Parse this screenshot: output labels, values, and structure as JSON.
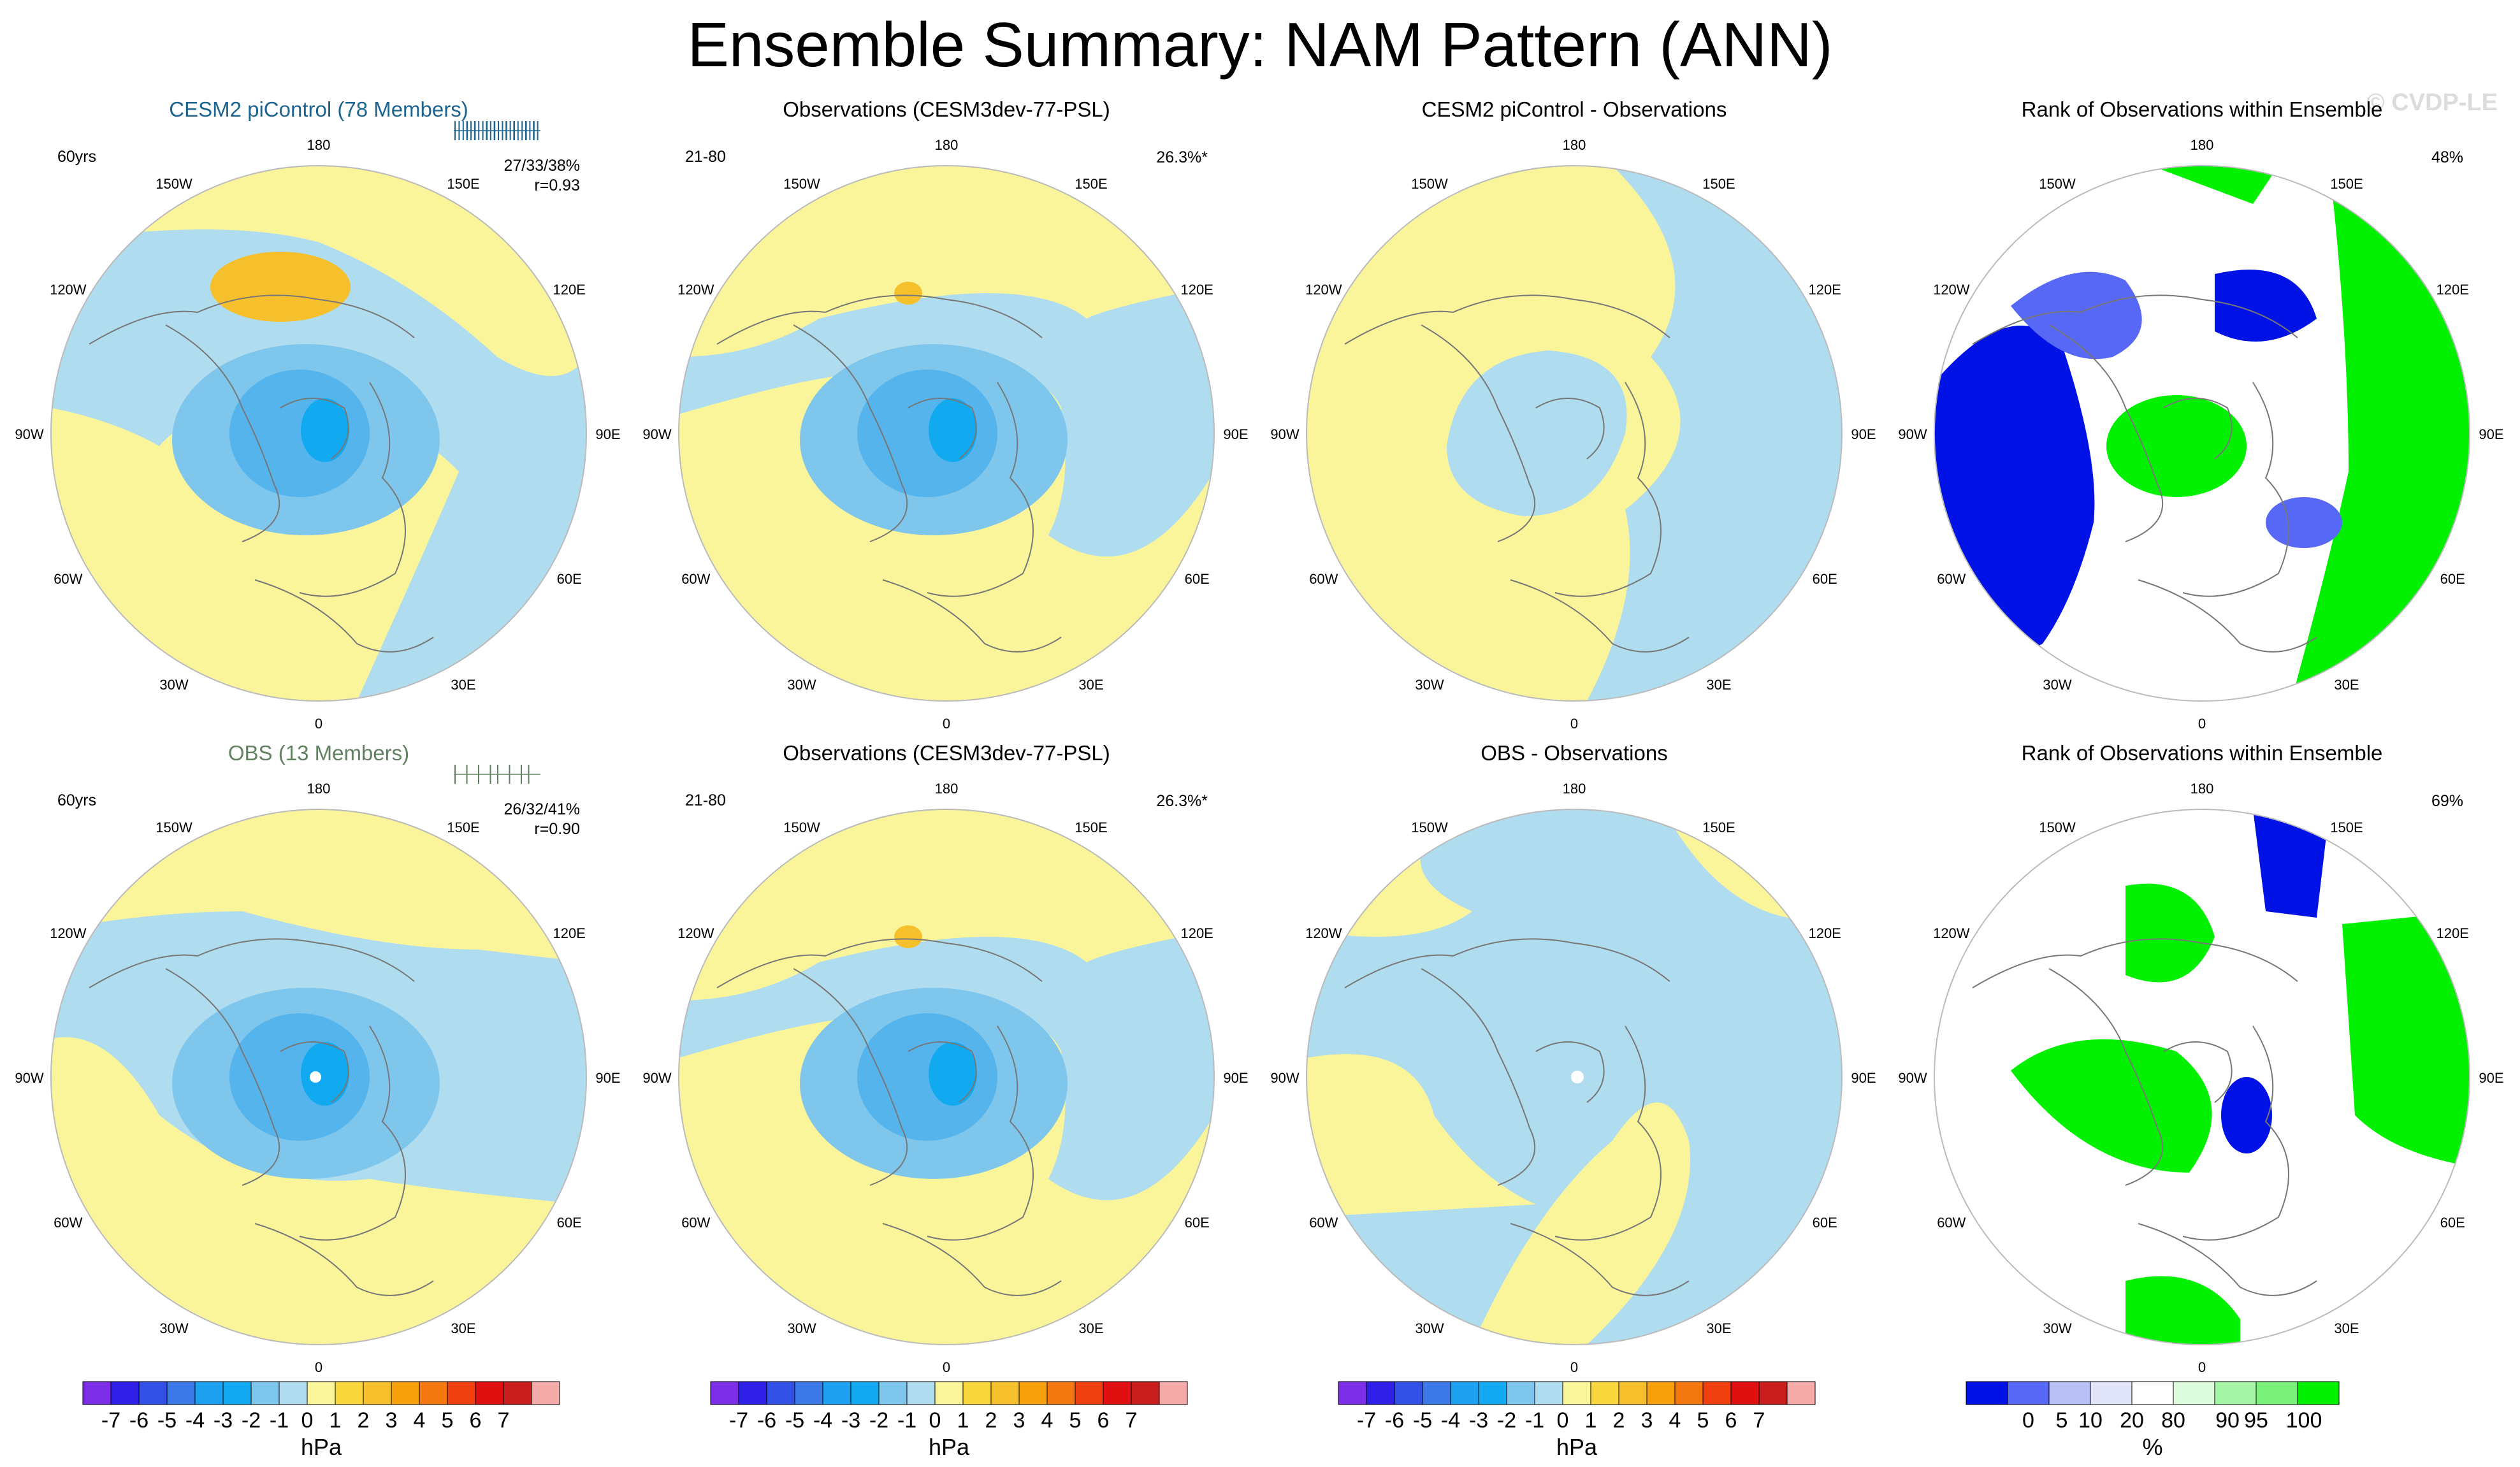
{
  "figure": {
    "title": "Ensemble Summary: NAM Pattern (ANN)",
    "watermark": "© CVDP-LE"
  },
  "longitude_labels": [
    "180",
    "150E",
    "120E",
    "90E",
    "60E",
    "30E",
    "0",
    "30W",
    "60W",
    "90W",
    "120W",
    "150W"
  ],
  "colors": {
    "neg1": "#b0dcf0",
    "neg2": "#7fc6ec",
    "neg3": "#55b4ec",
    "neg4": "#11aaf0",
    "pos1": "#faf59a",
    "pos2": "#f9d63c",
    "pos3": "#f6c02c",
    "rank_dark_blue": "#0012e6",
    "rank_blue": "#5668f5",
    "rank_light_blue": "#b8bff5",
    "rank_pale_blue": "#e2e5fa",
    "rank_white": "#ffffff",
    "rank_pale_green": "#dcfadc",
    "rank_light_green": "#a6f5a6",
    "rank_mid_green": "#7af07a",
    "rank_green": "#00f000",
    "title_blue": "#1e6490",
    "title_green": "#608060"
  },
  "panels": [
    {
      "title": "CESM2 piControl (78 Members)",
      "title_color": "#1e6490",
      "left_label": "60yrs",
      "right_lines": [
        "27/33/38%",
        "r=0.93"
      ],
      "rug_color": "#1e6490"
    },
    {
      "title": "Observations (CESM3dev-77-PSL)",
      "left_label": "21-80",
      "right_lines": [
        "26.3%*"
      ]
    },
    {
      "title": "CESM2 piControl - Observations",
      "left_label": "",
      "right_lines": []
    },
    {
      "title": "Rank of Observations within Ensemble",
      "left_label": "",
      "right_lines": [
        "48%"
      ]
    },
    {
      "title": "OBS (13 Members)",
      "title_color": "#608060",
      "left_label": "60yrs",
      "right_lines": [
        "26/32/41%",
        "r=0.90"
      ],
      "rug_color": "#608060"
    },
    {
      "title": "Observations (CESM3dev-77-PSL)",
      "left_label": "21-80",
      "right_lines": [
        "26.3%*"
      ]
    },
    {
      "title": "OBS - Observations",
      "left_label": "",
      "right_lines": []
    },
    {
      "title": "Rank of Observations within Ensemble",
      "left_label": "",
      "right_lines": [
        "69%"
      ]
    }
  ],
  "chart_data": [
    {
      "type": "heatmap",
      "title": "CESM2 piControl (78 Members)",
      "units": "hPa",
      "projection": "north polar stereographic"
    },
    {
      "type": "heatmap",
      "title": "Observations (CESM3dev-77-PSL)",
      "units": "hPa",
      "projection": "north polar stereographic"
    },
    {
      "type": "heatmap",
      "title": "CESM2 piControl - Observations",
      "units": "hPa",
      "projection": "north polar stereographic"
    },
    {
      "type": "heatmap",
      "title": "Rank of Observations within Ensemble",
      "units": "%",
      "projection": "north polar stereographic"
    },
    {
      "type": "heatmap",
      "title": "OBS (13 Members)",
      "units": "hPa",
      "projection": "north polar stereographic"
    },
    {
      "type": "heatmap",
      "title": "Observations (CESM3dev-77-PSL)",
      "units": "hPa",
      "projection": "north polar stereographic"
    },
    {
      "type": "heatmap",
      "title": "OBS - Observations",
      "units": "hPa",
      "projection": "north polar stereographic"
    },
    {
      "type": "heatmap",
      "title": "Rank of Observations within Ensemble",
      "units": "%",
      "projection": "north polar stereographic"
    }
  ],
  "colorbar_hpa": {
    "units": "hPa",
    "labels": [
      "-7",
      "-6",
      "-5",
      "-4",
      "-3",
      "-2",
      "-1",
      "0",
      "1",
      "2",
      "3",
      "4",
      "5",
      "6",
      "7"
    ],
    "colors": [
      "#7b2ee6",
      "#2e1ee6",
      "#3250e6",
      "#3c78e6",
      "#1ea0f0",
      "#11aaf0",
      "#7fc6ec",
      "#b0dcf0",
      "#faf59a",
      "#f9d63c",
      "#f6c02c",
      "#f6a00c",
      "#f47810",
      "#f04010",
      "#e01010",
      "#c81e1e",
      "#f5aaaa"
    ]
  },
  "colorbar_rank": {
    "units": "%",
    "labels": [
      "0",
      "5",
      "10",
      "20",
      "80",
      "90",
      "95",
      "100"
    ],
    "colors": [
      "#0012e6",
      "#5668f5",
      "#b8bff5",
      "#e2e5fa",
      "#ffffff",
      "#dcfadc",
      "#a6f5a6",
      "#7af07a",
      "#00f000"
    ]
  }
}
